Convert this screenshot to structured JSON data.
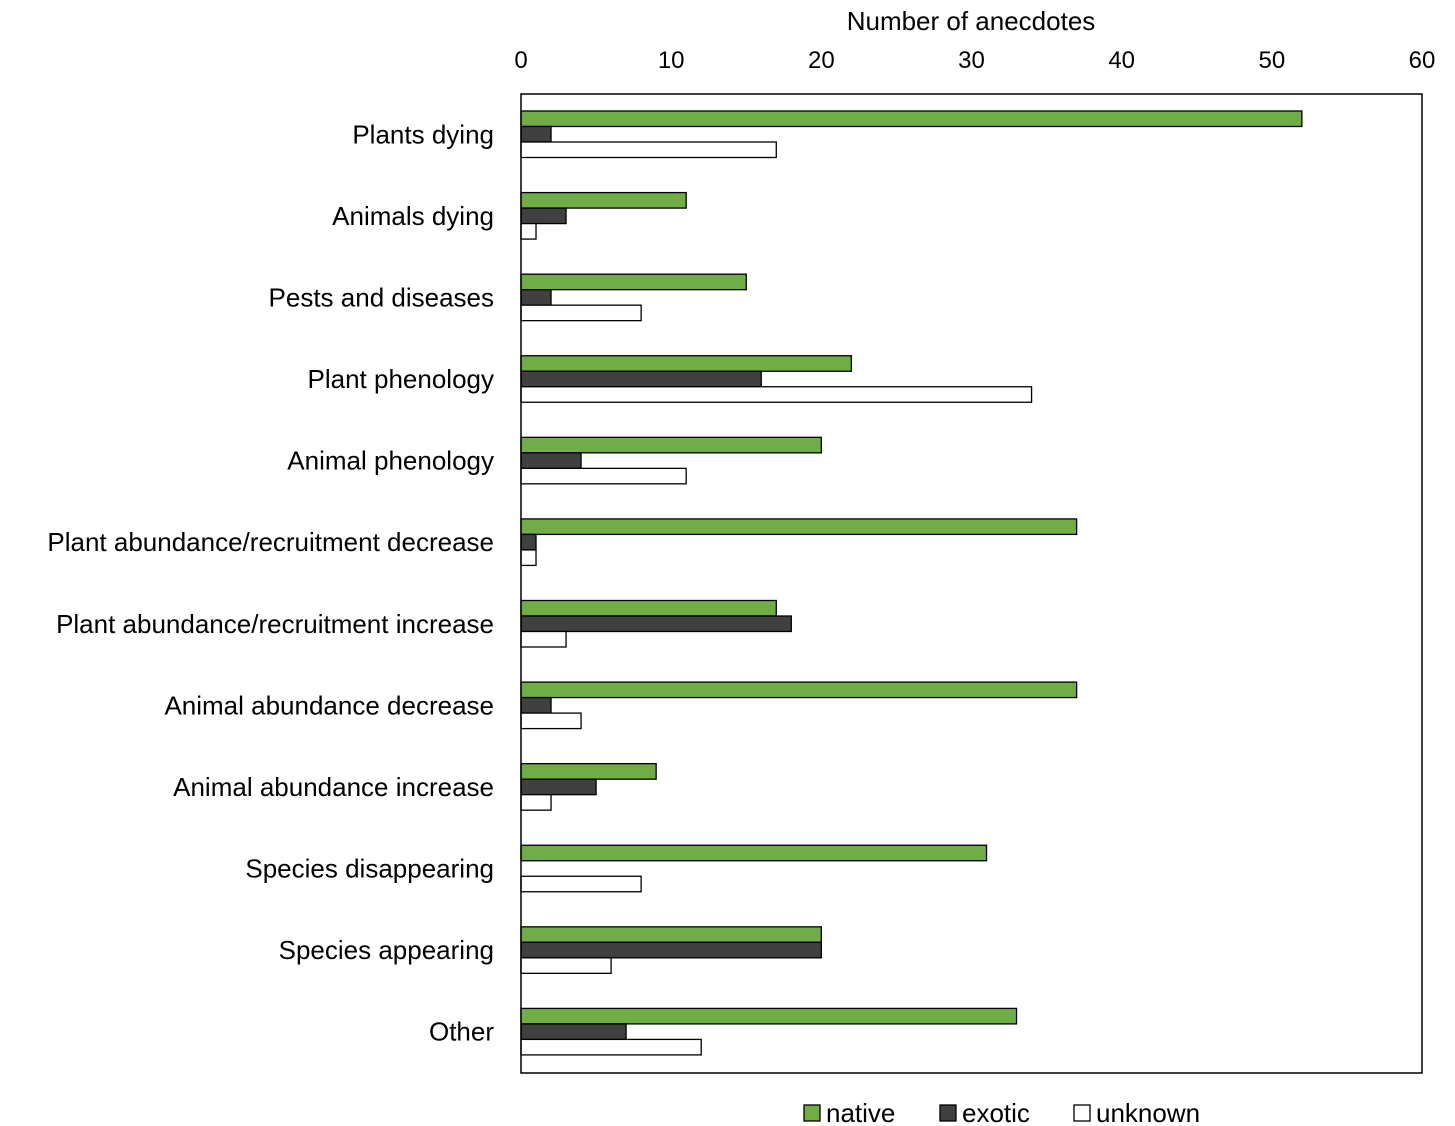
{
  "chart_data": {
    "type": "bar",
    "orientation": "horizontal",
    "xlabel": "Number of anecdotes",
    "xlabel_position": "top",
    "xlim": [
      0,
      60
    ],
    "xticks": [
      0,
      10,
      20,
      30,
      40,
      50,
      60
    ],
    "grid": false,
    "legend_position": "bottom-right",
    "categories": [
      "Plants dying",
      "Animals dying",
      "Pests and diseases",
      "Plant phenology",
      "Animal phenology",
      "Plant abundance/recruitment decrease",
      "Plant abundance/recruitment increase",
      "Animal abundance decrease",
      "Animal abundance increase",
      "Species disappearing",
      "Species appearing",
      "Other"
    ],
    "series": [
      {
        "name": "native",
        "color": "#70ad47",
        "values": [
          52,
          11,
          15,
          22,
          20,
          37,
          17,
          37,
          9,
          31,
          20,
          33
        ]
      },
      {
        "name": "exotic",
        "color": "#404040",
        "values": [
          2,
          3,
          2,
          16,
          4,
          1,
          18,
          2,
          5,
          0,
          20,
          7
        ]
      },
      {
        "name": "unknown",
        "color": "#ffffff",
        "values": [
          17,
          1,
          8,
          34,
          11,
          1,
          3,
          4,
          2,
          8,
          6,
          12
        ]
      }
    ]
  }
}
